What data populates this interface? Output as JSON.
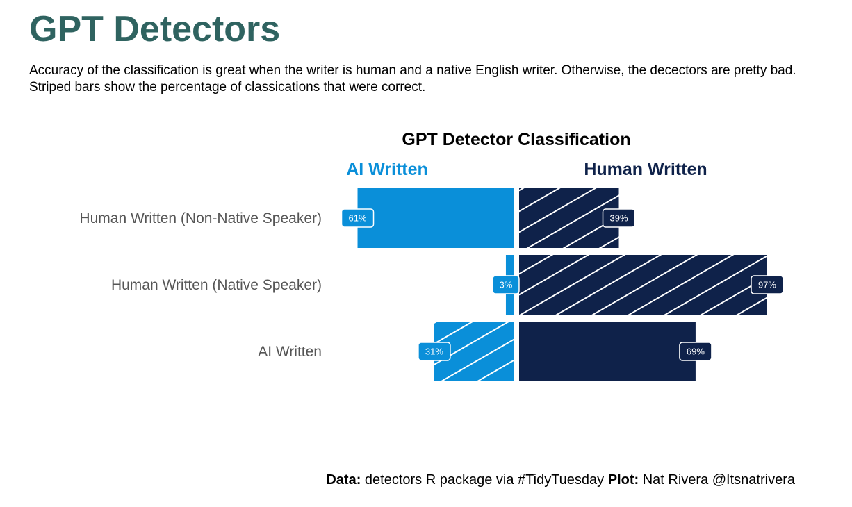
{
  "page": {
    "title": "GPT Detectors",
    "subtitle": "Accuracy of the classification is great when the writer is human and a native English writer. Otherwise, the decectors are pretty bad. Striped bars show the percentage of classications that were correct.",
    "caption": {
      "data_label": "Data:",
      "data_text": " detectors R package via #TidyTuesday ",
      "plot_label": "Plot:",
      "plot_text": " Nat Rivera @Itsnatrivera"
    }
  },
  "colors": {
    "title": "#2F6360",
    "ai_written": "#0A8FD9",
    "human_written": "#0F224A",
    "axis_text": "#555555",
    "stripe": "#ffffff"
  },
  "chart_data": {
    "type": "bar",
    "orientation": "horizontal-diverging",
    "title": "GPT Detector Classification",
    "categories": [
      "Human Written (Non-Native Speaker)",
      "Human Written (Native Speaker)",
      "AI Written"
    ],
    "series": [
      {
        "name": "AI Written",
        "side": "left",
        "values": [
          61,
          3,
          31
        ],
        "labels": [
          "61%",
          "3%",
          "31%"
        ],
        "striped": [
          false,
          false,
          true
        ]
      },
      {
        "name": "Human Written",
        "side": "right",
        "values": [
          39,
          97,
          69
        ],
        "labels": [
          "39%",
          "97%",
          "69%"
        ],
        "striped": [
          true,
          true,
          false
        ]
      }
    ],
    "xlim": [
      0,
      100
    ],
    "unit": "%",
    "grid": false,
    "legend": "top"
  }
}
